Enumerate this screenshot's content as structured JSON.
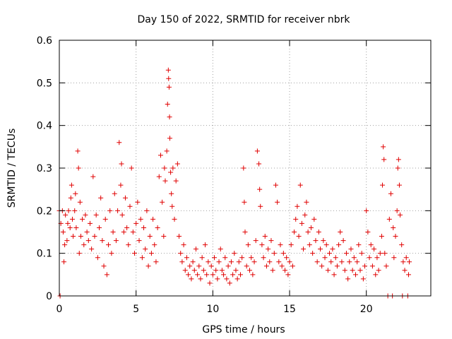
{
  "chart_data": {
    "type": "scatter",
    "title": "Day 150 of 2022, SRMTID for receiver nbrk",
    "xlabel": "GPS time / hours",
    "ylabel": "SRMTID / TECUs",
    "xlim": [
      0,
      24.2
    ],
    "ylim": [
      0,
      0.6
    ],
    "xticks": [
      0,
      5,
      10,
      15,
      20
    ],
    "xtick_labels": [
      "0",
      "5",
      "10",
      "15",
      "20"
    ],
    "yticks": [
      0,
      0.1,
      0.2,
      0.3,
      0.4,
      0.5,
      0.6
    ],
    "ytick_labels": [
      "0",
      "0.1",
      "0.2",
      "0.3",
      "0.4",
      "0.5",
      "0.6"
    ],
    "grid": true,
    "marker": "+",
    "color": "#e00000",
    "series": [
      {
        "name": "SRMTID",
        "points": [
          [
            0.0,
            0.2
          ],
          [
            0.05,
            0.0
          ],
          [
            0.1,
            0.17
          ],
          [
            0.2,
            0.2
          ],
          [
            0.25,
            0.15
          ],
          [
            0.3,
            0.08
          ],
          [
            0.35,
            0.12
          ],
          [
            0.4,
            0.19
          ],
          [
            0.5,
            0.13
          ],
          [
            0.55,
            0.17
          ],
          [
            0.6,
            0.2
          ],
          [
            0.7,
            0.16
          ],
          [
            0.75,
            0.23
          ],
          [
            0.8,
            0.26
          ],
          [
            0.85,
            0.18
          ],
          [
            0.9,
            0.14
          ],
          [
            1.0,
            0.2
          ],
          [
            1.05,
            0.24
          ],
          [
            1.1,
            0.16
          ],
          [
            1.2,
            0.34
          ],
          [
            1.25,
            0.3
          ],
          [
            1.3,
            0.1
          ],
          [
            1.35,
            0.22
          ],
          [
            1.4,
            0.14
          ],
          [
            1.5,
            0.18
          ],
          [
            1.6,
            0.12
          ],
          [
            1.7,
            0.19
          ],
          [
            1.8,
            0.15
          ],
          [
            1.9,
            0.13
          ],
          [
            2.0,
            0.17
          ],
          [
            2.1,
            0.11
          ],
          [
            2.2,
            0.28
          ],
          [
            2.3,
            0.14
          ],
          [
            2.4,
            0.19
          ],
          [
            2.5,
            0.09
          ],
          [
            2.6,
            0.16
          ],
          [
            2.7,
            0.23
          ],
          [
            2.8,
            0.13
          ],
          [
            2.9,
            0.07
          ],
          [
            3.0,
            0.18
          ],
          [
            3.1,
            0.05
          ],
          [
            3.2,
            0.12
          ],
          [
            3.3,
            0.2
          ],
          [
            3.4,
            0.1
          ],
          [
            3.5,
            0.15
          ],
          [
            3.6,
            0.24
          ],
          [
            3.7,
            0.13
          ],
          [
            3.8,
            0.2
          ],
          [
            3.9,
            0.36
          ],
          [
            4.0,
            0.26
          ],
          [
            4.05,
            0.31
          ],
          [
            4.1,
            0.19
          ],
          [
            4.2,
            0.15
          ],
          [
            4.3,
            0.23
          ],
          [
            4.4,
            0.16
          ],
          [
            4.5,
            0.12
          ],
          [
            4.6,
            0.21
          ],
          [
            4.7,
            0.3
          ],
          [
            4.8,
            0.15
          ],
          [
            4.9,
            0.1
          ],
          [
            5.0,
            0.17
          ],
          [
            5.1,
            0.22
          ],
          [
            5.2,
            0.13
          ],
          [
            5.3,
            0.18
          ],
          [
            5.4,
            0.09
          ],
          [
            5.5,
            0.16
          ],
          [
            5.6,
            0.11
          ],
          [
            5.7,
            0.2
          ],
          [
            5.8,
            0.07
          ],
          [
            5.9,
            0.14
          ],
          [
            6.0,
            0.1
          ],
          [
            6.1,
            0.18
          ],
          [
            6.2,
            0.12
          ],
          [
            6.3,
            0.08
          ],
          [
            6.4,
            0.16
          ],
          [
            6.5,
            0.28
          ],
          [
            6.6,
            0.33
          ],
          [
            6.7,
            0.22
          ],
          [
            6.8,
            0.14
          ],
          [
            6.85,
            0.3
          ],
          [
            6.9,
            0.27
          ],
          [
            7.0,
            0.34
          ],
          [
            7.05,
            0.45
          ],
          [
            7.1,
            0.53
          ],
          [
            7.12,
            0.51
          ],
          [
            7.15,
            0.49
          ],
          [
            7.18,
            0.42
          ],
          [
            7.2,
            0.37
          ],
          [
            7.25,
            0.29
          ],
          [
            7.3,
            0.24
          ],
          [
            7.35,
            0.21
          ],
          [
            7.4,
            0.3
          ],
          [
            7.5,
            0.18
          ],
          [
            7.6,
            0.27
          ],
          [
            7.7,
            0.31
          ],
          [
            7.8,
            0.14
          ],
          [
            7.9,
            0.1
          ],
          [
            8.0,
            0.08
          ],
          [
            8.1,
            0.12
          ],
          [
            8.2,
            0.06
          ],
          [
            8.3,
            0.09
          ],
          [
            8.4,
            0.05
          ],
          [
            8.5,
            0.07
          ],
          [
            8.6,
            0.04
          ],
          [
            8.7,
            0.08
          ],
          [
            8.8,
            0.06
          ],
          [
            8.9,
            0.11
          ],
          [
            9.0,
            0.05
          ],
          [
            9.1,
            0.07
          ],
          [
            9.2,
            0.04
          ],
          [
            9.3,
            0.09
          ],
          [
            9.4,
            0.06
          ],
          [
            9.5,
            0.12
          ],
          [
            9.6,
            0.05
          ],
          [
            9.7,
            0.08
          ],
          [
            9.8,
            0.03
          ],
          [
            9.9,
            0.07
          ],
          [
            10.0,
            0.05
          ],
          [
            10.1,
            0.09
          ],
          [
            10.2,
            0.06
          ],
          [
            10.3,
            0.04
          ],
          [
            10.4,
            0.08
          ],
          [
            10.5,
            0.11
          ],
          [
            10.6,
            0.06
          ],
          [
            10.7,
            0.05
          ],
          [
            10.8,
            0.09
          ],
          [
            10.9,
            0.04
          ],
          [
            11.0,
            0.07
          ],
          [
            11.1,
            0.03
          ],
          [
            11.2,
            0.08
          ],
          [
            11.3,
            0.05
          ],
          [
            11.4,
            0.1
          ],
          [
            11.5,
            0.06
          ],
          [
            11.6,
            0.04
          ],
          [
            11.7,
            0.08
          ],
          [
            11.8,
            0.05
          ],
          [
            11.9,
            0.09
          ],
          [
            12.0,
            0.3
          ],
          [
            12.05,
            0.22
          ],
          [
            12.1,
            0.15
          ],
          [
            12.2,
            0.07
          ],
          [
            12.3,
            0.12
          ],
          [
            12.4,
            0.06
          ],
          [
            12.5,
            0.09
          ],
          [
            12.6,
            0.05
          ],
          [
            12.7,
            0.08
          ],
          [
            12.8,
            0.13
          ],
          [
            12.9,
            0.34
          ],
          [
            13.0,
            0.31
          ],
          [
            13.05,
            0.25
          ],
          [
            13.1,
            0.21
          ],
          [
            13.2,
            0.12
          ],
          [
            13.3,
            0.09
          ],
          [
            13.4,
            0.14
          ],
          [
            13.5,
            0.07
          ],
          [
            13.6,
            0.11
          ],
          [
            13.7,
            0.08
          ],
          [
            13.8,
            0.13
          ],
          [
            13.9,
            0.06
          ],
          [
            14.0,
            0.1
          ],
          [
            14.1,
            0.26
          ],
          [
            14.2,
            0.22
          ],
          [
            14.3,
            0.08
          ],
          [
            14.4,
            0.12
          ],
          [
            14.5,
            0.07
          ],
          [
            14.6,
            0.1
          ],
          [
            14.7,
            0.06
          ],
          [
            14.8,
            0.09
          ],
          [
            14.9,
            0.05
          ],
          [
            15.0,
            0.08
          ],
          [
            15.1,
            0.12
          ],
          [
            15.2,
            0.07
          ],
          [
            15.3,
            0.15
          ],
          [
            15.4,
            0.18
          ],
          [
            15.5,
            0.21
          ],
          [
            15.6,
            0.14
          ],
          [
            15.7,
            0.26
          ],
          [
            15.8,
            0.17
          ],
          [
            15.9,
            0.11
          ],
          [
            16.0,
            0.19
          ],
          [
            16.1,
            0.22
          ],
          [
            16.2,
            0.15
          ],
          [
            16.3,
            0.12
          ],
          [
            16.4,
            0.16
          ],
          [
            16.5,
            0.1
          ],
          [
            16.6,
            0.18
          ],
          [
            16.7,
            0.13
          ],
          [
            16.8,
            0.08
          ],
          [
            16.9,
            0.15
          ],
          [
            17.0,
            0.11
          ],
          [
            17.1,
            0.07
          ],
          [
            17.2,
            0.13
          ],
          [
            17.3,
            0.09
          ],
          [
            17.4,
            0.12
          ],
          [
            17.5,
            0.06
          ],
          [
            17.6,
            0.1
          ],
          [
            17.7,
            0.08
          ],
          [
            17.8,
            0.11
          ],
          [
            17.9,
            0.05
          ],
          [
            18.0,
            0.09
          ],
          [
            18.1,
            0.07
          ],
          [
            18.2,
            0.12
          ],
          [
            18.3,
            0.15
          ],
          [
            18.4,
            0.08
          ],
          [
            18.5,
            0.13
          ],
          [
            18.6,
            0.06
          ],
          [
            18.7,
            0.1
          ],
          [
            18.8,
            0.04
          ],
          [
            18.9,
            0.08
          ],
          [
            19.0,
            0.11
          ],
          [
            19.1,
            0.06
          ],
          [
            19.2,
            0.09
          ],
          [
            19.3,
            0.05
          ],
          [
            19.4,
            0.08
          ],
          [
            19.5,
            0.12
          ],
          [
            19.6,
            0.06
          ],
          [
            19.7,
            0.1
          ],
          [
            19.8,
            0.04
          ],
          [
            19.9,
            0.07
          ],
          [
            20.0,
            0.2
          ],
          [
            20.1,
            0.15
          ],
          [
            20.2,
            0.09
          ],
          [
            20.3,
            0.12
          ],
          [
            20.4,
            0.07
          ],
          [
            20.5,
            0.11
          ],
          [
            20.6,
            0.05
          ],
          [
            20.7,
            0.09
          ],
          [
            20.8,
            0.06
          ],
          [
            20.9,
            0.1
          ],
          [
            21.0,
            0.14
          ],
          [
            21.05,
            0.26
          ],
          [
            21.1,
            0.35
          ],
          [
            21.15,
            0.32
          ],
          [
            21.2,
            0.1
          ],
          [
            21.3,
            0.07
          ],
          [
            21.4,
            0.0
          ],
          [
            21.5,
            0.18
          ],
          [
            21.6,
            0.24
          ],
          [
            21.7,
            0.0
          ],
          [
            21.75,
            0.16
          ],
          [
            21.8,
            0.09
          ],
          [
            21.9,
            0.14
          ],
          [
            22.0,
            0.2
          ],
          [
            22.05,
            0.3
          ],
          [
            22.1,
            0.32
          ],
          [
            22.15,
            0.26
          ],
          [
            22.2,
            0.19
          ],
          [
            22.3,
            0.12
          ],
          [
            22.35,
            0.0
          ],
          [
            22.4,
            0.08
          ],
          [
            22.5,
            0.06
          ],
          [
            22.6,
            0.09
          ],
          [
            22.7,
            0.0
          ],
          [
            22.75,
            0.05
          ],
          [
            22.8,
            0.08
          ]
        ]
      }
    ]
  }
}
